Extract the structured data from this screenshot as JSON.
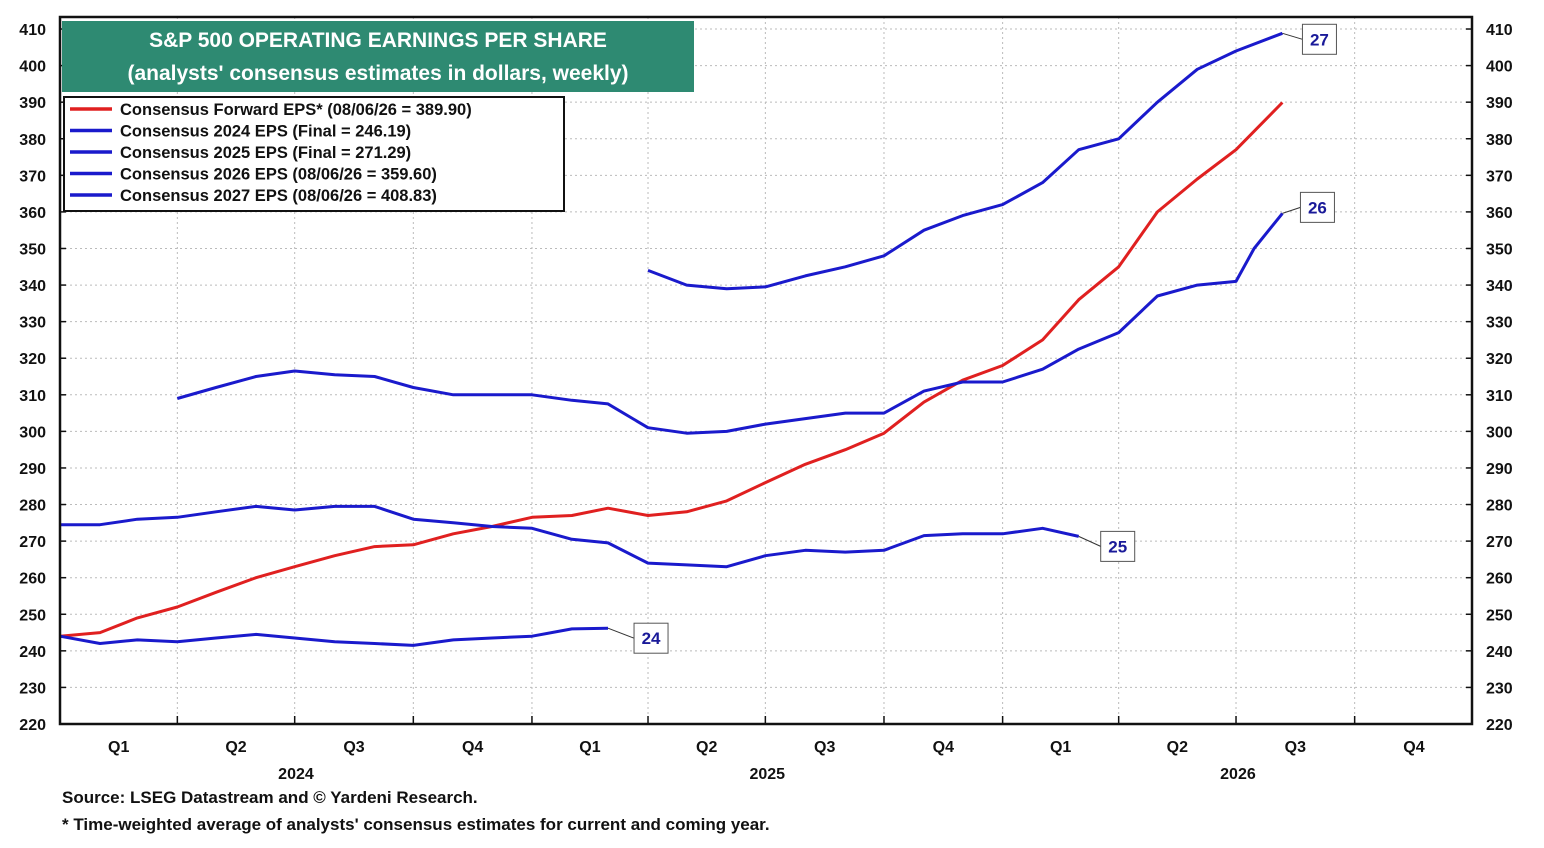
{
  "chart_data": {
    "type": "line",
    "title": "S&P 500 OPERATING EARNINGS PER SHARE",
    "subtitle": "(analysts' consensus estimates in dollars, weekly)",
    "ylim": [
      220,
      410
    ],
    "yticks": [
      220,
      230,
      240,
      250,
      260,
      270,
      280,
      290,
      300,
      310,
      320,
      330,
      340,
      350,
      360,
      370,
      380,
      390,
      400,
      410
    ],
    "xlim": [
      "2024-01-01",
      "2026-12-31"
    ],
    "quarter_labels": [
      "Q1",
      "Q2",
      "Q3",
      "Q4",
      "Q1",
      "Q2",
      "Q3",
      "Q4",
      "Q1",
      "Q2",
      "Q3",
      "Q4"
    ],
    "year_labels": [
      "2024",
      "2025",
      "2026"
    ],
    "grid": true,
    "legend_position": "top-left",
    "series": [
      {
        "name": "Consensus Forward EPS* (08/06/26 = 389.90)",
        "color": "#e02020",
        "points": [
          [
            "2024-01-01",
            244.0
          ],
          [
            "2024-02-01",
            245.0
          ],
          [
            "2024-03-01",
            249.0
          ],
          [
            "2024-04-01",
            252.0
          ],
          [
            "2024-05-01",
            256.0
          ],
          [
            "2024-06-01",
            260.0
          ],
          [
            "2024-07-01",
            263.0
          ],
          [
            "2024-08-01",
            266.0
          ],
          [
            "2024-09-01",
            268.5
          ],
          [
            "2024-10-01",
            269.0
          ],
          [
            "2024-11-01",
            272.0
          ],
          [
            "2024-12-01",
            274.0
          ],
          [
            "2025-01-01",
            276.5
          ],
          [
            "2025-02-01",
            277.0
          ],
          [
            "2025-03-01",
            279.0
          ],
          [
            "2025-04-01",
            277.0
          ],
          [
            "2025-05-01",
            278.0
          ],
          [
            "2025-06-01",
            281.0
          ],
          [
            "2025-07-01",
            286.0
          ],
          [
            "2025-08-01",
            291.0
          ],
          [
            "2025-09-01",
            295.0
          ],
          [
            "2025-10-01",
            299.5
          ],
          [
            "2025-11-01",
            308.0
          ],
          [
            "2025-12-01",
            314.0
          ],
          [
            "2026-01-01",
            318.0
          ],
          [
            "2026-02-01",
            325.0
          ],
          [
            "2026-03-01",
            336.0
          ],
          [
            "2026-04-01",
            345.0
          ],
          [
            "2026-05-01",
            360.0
          ],
          [
            "2026-06-01",
            369.0
          ],
          [
            "2026-07-01",
            377.0
          ],
          [
            "2026-08-06",
            389.9
          ]
        ]
      },
      {
        "name": "Consensus 2024 EPS (Final = 246.19)",
        "color": "#1a1acc",
        "end_label": "24",
        "points": [
          [
            "2024-01-01",
            244.0
          ],
          [
            "2024-02-01",
            242.0
          ],
          [
            "2024-03-01",
            243.0
          ],
          [
            "2024-04-01",
            242.5
          ],
          [
            "2024-05-01",
            243.5
          ],
          [
            "2024-06-01",
            244.5
          ],
          [
            "2024-07-01",
            243.5
          ],
          [
            "2024-08-01",
            242.5
          ],
          [
            "2024-09-01",
            242.0
          ],
          [
            "2024-10-01",
            241.5
          ],
          [
            "2024-11-01",
            243.0
          ],
          [
            "2024-12-01",
            243.5
          ],
          [
            "2025-01-01",
            244.0
          ],
          [
            "2025-02-01",
            246.0
          ],
          [
            "2025-03-01",
            246.19
          ]
        ]
      },
      {
        "name": "Consensus 2025 EPS (Final = 271.29)",
        "color": "#1a1acc",
        "end_label": "25",
        "points": [
          [
            "2024-01-01",
            274.5
          ],
          [
            "2024-02-01",
            274.5
          ],
          [
            "2024-03-01",
            276.0
          ],
          [
            "2024-04-01",
            276.5
          ],
          [
            "2024-05-01",
            278.0
          ],
          [
            "2024-06-01",
            279.5
          ],
          [
            "2024-07-01",
            278.5
          ],
          [
            "2024-08-01",
            279.5
          ],
          [
            "2024-09-01",
            279.5
          ],
          [
            "2024-10-01",
            276.0
          ],
          [
            "2024-11-01",
            275.0
          ],
          [
            "2024-12-01",
            274.0
          ],
          [
            "2025-01-01",
            273.5
          ],
          [
            "2025-02-01",
            270.5
          ],
          [
            "2025-03-01",
            269.5
          ],
          [
            "2025-04-01",
            264.0
          ],
          [
            "2025-05-01",
            263.5
          ],
          [
            "2025-06-01",
            263.0
          ],
          [
            "2025-07-01",
            266.0
          ],
          [
            "2025-08-01",
            267.5
          ],
          [
            "2025-09-01",
            267.0
          ],
          [
            "2025-10-01",
            267.5
          ],
          [
            "2025-11-01",
            271.5
          ],
          [
            "2025-12-01",
            272.0
          ],
          [
            "2026-01-01",
            272.0
          ],
          [
            "2026-02-01",
            273.5
          ],
          [
            "2026-03-01",
            271.29
          ]
        ]
      },
      {
        "name": "Consensus 2026 EPS (08/06/26 = 359.60)",
        "color": "#1a1acc",
        "end_label": "26",
        "points": [
          [
            "2024-04-01",
            309.0
          ],
          [
            "2024-05-01",
            312.0
          ],
          [
            "2024-06-01",
            315.0
          ],
          [
            "2024-07-01",
            316.5
          ],
          [
            "2024-08-01",
            315.5
          ],
          [
            "2024-09-01",
            315.0
          ],
          [
            "2024-10-01",
            312.0
          ],
          [
            "2024-11-01",
            310.0
          ],
          [
            "2024-12-01",
            310.0
          ],
          [
            "2025-01-01",
            310.0
          ],
          [
            "2025-02-01",
            308.5
          ],
          [
            "2025-03-01",
            307.5
          ],
          [
            "2025-04-01",
            301.0
          ],
          [
            "2025-05-01",
            299.5
          ],
          [
            "2025-06-01",
            300.0
          ],
          [
            "2025-07-01",
            302.0
          ],
          [
            "2025-08-01",
            303.5
          ],
          [
            "2025-09-01",
            305.0
          ],
          [
            "2025-10-01",
            305.0
          ],
          [
            "2025-11-01",
            311.0
          ],
          [
            "2025-12-01",
            313.5
          ],
          [
            "2026-01-01",
            313.5
          ],
          [
            "2026-02-01",
            317.0
          ],
          [
            "2026-03-01",
            322.5
          ],
          [
            "2026-04-01",
            327.0
          ],
          [
            "2026-05-01",
            337.0
          ],
          [
            "2026-06-01",
            340.0
          ],
          [
            "2026-07-01",
            341.0
          ],
          [
            "2026-07-15",
            350.0
          ],
          [
            "2026-08-06",
            359.6
          ]
        ]
      },
      {
        "name": "Consensus 2027 EPS (08/06/26 = 408.83)",
        "color": "#1a1acc",
        "end_label": "27",
        "points": [
          [
            "2025-04-01",
            344.0
          ],
          [
            "2025-05-01",
            340.0
          ],
          [
            "2025-06-01",
            339.0
          ],
          [
            "2025-07-01",
            339.5
          ],
          [
            "2025-08-01",
            342.5
          ],
          [
            "2025-09-01",
            345.0
          ],
          [
            "2025-10-01",
            348.0
          ],
          [
            "2025-11-01",
            355.0
          ],
          [
            "2025-12-01",
            359.0
          ],
          [
            "2026-01-01",
            362.0
          ],
          [
            "2026-02-01",
            368.0
          ],
          [
            "2026-03-01",
            377.0
          ],
          [
            "2026-04-01",
            380.0
          ],
          [
            "2026-05-01",
            390.0
          ],
          [
            "2026-06-01",
            399.0
          ],
          [
            "2026-07-01",
            404.0
          ],
          [
            "2026-08-06",
            408.83
          ]
        ]
      }
    ]
  },
  "footnotes": {
    "source": "Source: LSEG Datastream and © Yardeni Research.",
    "note": "* Time-weighted average of analysts' consensus estimates for current and coming year."
  }
}
